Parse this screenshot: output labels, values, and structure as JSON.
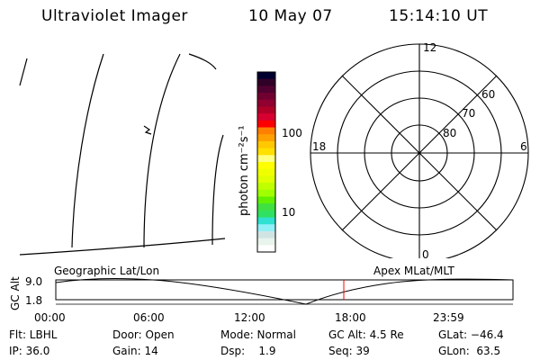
{
  "header": {
    "instrument": "Ultraviolet Imager",
    "date": "10 May 07",
    "time": "15:14:10 UT"
  },
  "colorbar": {
    "label": "photon cm⁻²s⁻¹",
    "ticks": [
      "100",
      "10"
    ],
    "colors": [
      "#000030",
      "#300028",
      "#500030",
      "#700030",
      "#900030",
      "#b00028",
      "#d80030",
      "#ff0000",
      "#ff8000",
      "#ffa000",
      "#ffc800",
      "#ffe000",
      "#ffff80",
      "#ffff00",
      "#f0ff00",
      "#e0ff00",
      "#c0ff00",
      "#a0ff00",
      "#60f000",
      "#40e040",
      "#30e060",
      "#30e0d0",
      "#90f0f8",
      "#d0e4e4",
      "#e8f4ec",
      "#ffffff"
    ]
  },
  "polar": {
    "mlt_labels": {
      "top": "12",
      "left": "18",
      "right": "6",
      "bottom": "0"
    },
    "lat_labels": [
      "60",
      "70",
      "80"
    ]
  },
  "timeline": {
    "left_label": "Geographic Lat/Lon",
    "right_label": "Apex MLat/MLT",
    "ylabel": "GC Alt",
    "yticks": [
      "9.0",
      "1.8"
    ],
    "xticks": [
      "00:00",
      "06:00",
      "12:00",
      "18:00",
      "23:59"
    ],
    "current_marker_color": "#ff0000"
  },
  "info": {
    "row1": [
      "Flt: LBHL",
      "Door: Open",
      "Mode: Normal",
      "GC Alt: 4.5 Re",
      "GLat: −46.4"
    ],
    "row2": [
      "IP: 36.0",
      "Gain: 14",
      "Dsp:    1.9",
      "Seq: 39",
      "GLon:  63.5"
    ]
  }
}
